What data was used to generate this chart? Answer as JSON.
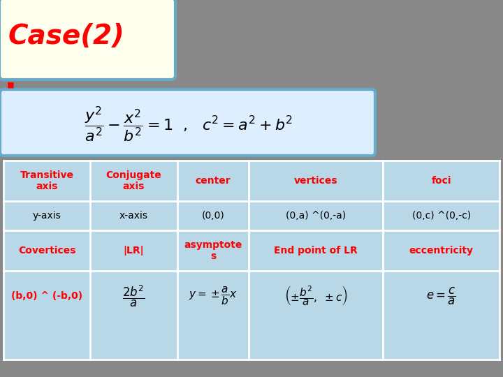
{
  "background_color": "#888888",
  "title_box_color": "#ffffee",
  "title_box_border": "#66aacc",
  "title_text": "Case(2)",
  "title_color": "#ff0000",
  "formula_box_color": "#ddeeff",
  "formula_box_border": "#66aacc",
  "table_bg_color": "#b8d8e8",
  "table_border_color": "#ffffff",
  "header_row": [
    "Transitive\naxis",
    "Conjugate\naxis",
    "center",
    "vertices",
    "foci"
  ],
  "row1": [
    "y-axis",
    "x-axis",
    "(0,0)",
    "(0,a) ^(0,-a)",
    "(0,c) ^(0,-c)"
  ],
  "row2": [
    "Covertices",
    "|LR|",
    "asymptote\ns",
    "End point of LR",
    "eccentricity"
  ],
  "row3_col0": "(b,0) ^ (-b,0)",
  "red_color": "#ff0000",
  "black_color": "#000000",
  "white_color": "#ffffff"
}
